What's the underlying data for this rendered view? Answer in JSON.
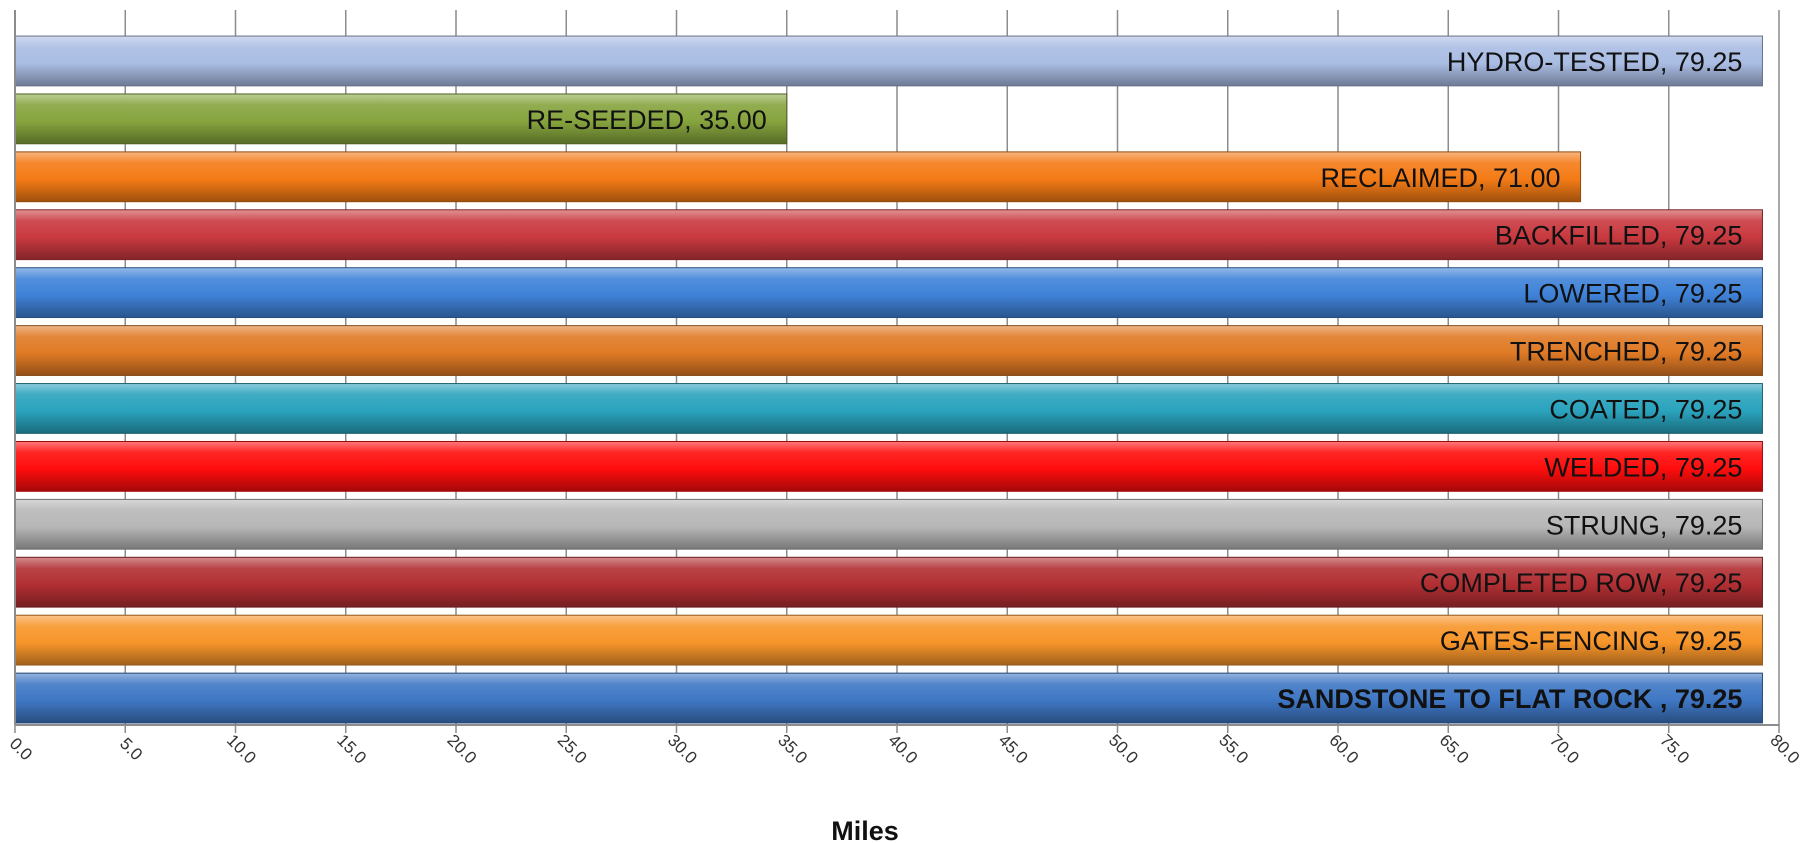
{
  "chart_data": {
    "type": "bar",
    "orientation": "horizontal",
    "xlabel": "Miles",
    "xlim": [
      0,
      80
    ],
    "x_ticks": [
      "0.0",
      "5.0",
      "10.0",
      "15.0",
      "20.0",
      "25.0",
      "30.0",
      "35.0",
      "40.0",
      "45.0",
      "50.0",
      "55.0",
      "60.0",
      "65.0",
      "70.0",
      "75.0",
      "80.0"
    ],
    "grid": "vertical",
    "bars": [
      {
        "category": "HYDRO-TESTED",
        "value": 79.25,
        "label": "HYDRO-TESTED, 79.25",
        "color": "#a9bce3",
        "bold": false
      },
      {
        "category": "RE-SEEDED",
        "value": 35.0,
        "label": "RE-SEEDED, 35.00",
        "color": "#86a43e",
        "bold": false
      },
      {
        "category": "RECLAIMED",
        "value": 71.0,
        "label": "RECLAIMED, 71.00",
        "color": "#f47b16",
        "bold": false
      },
      {
        "category": "BACKFILLED",
        "value": 79.25,
        "label": "BACKFILLED, 79.25",
        "color": "#c9393f",
        "bold": false
      },
      {
        "category": "LOWERED",
        "value": 79.25,
        "label": "LOWERED, 79.25",
        "color": "#3f82d8",
        "bold": false
      },
      {
        "category": "TRENCHED",
        "value": 79.25,
        "label": "TRENCHED, 79.25",
        "color": "#e07a25",
        "bold": false
      },
      {
        "category": "COATED",
        "value": 79.25,
        "label": "COATED, 79.25",
        "color": "#2aa3bd",
        "bold": false
      },
      {
        "category": "WELDED",
        "value": 79.25,
        "label": "WELDED, 79.25",
        "color": "#ff0d0d",
        "bold": false
      },
      {
        "category": "STRUNG",
        "value": 79.25,
        "label": "STRUNG, 79.25",
        "color": "#b7b7b7",
        "bold": false
      },
      {
        "category": "COMPLETED ROW",
        "value": 79.25,
        "label": "COMPLETED ROW, 79.25",
        "color": "#b12f33",
        "bold": false
      },
      {
        "category": "GATES-FENCING",
        "value": 79.25,
        "label": "GATES-FENCING, 79.25",
        "color": "#f7952a",
        "bold": false
      },
      {
        "category": "SANDSTONE TO FLAT ROCK",
        "value": 79.25,
        "label": "SANDSTONE TO FLAT ROCK , 79.25",
        "color": "#3f77c4",
        "bold": true
      }
    ]
  }
}
